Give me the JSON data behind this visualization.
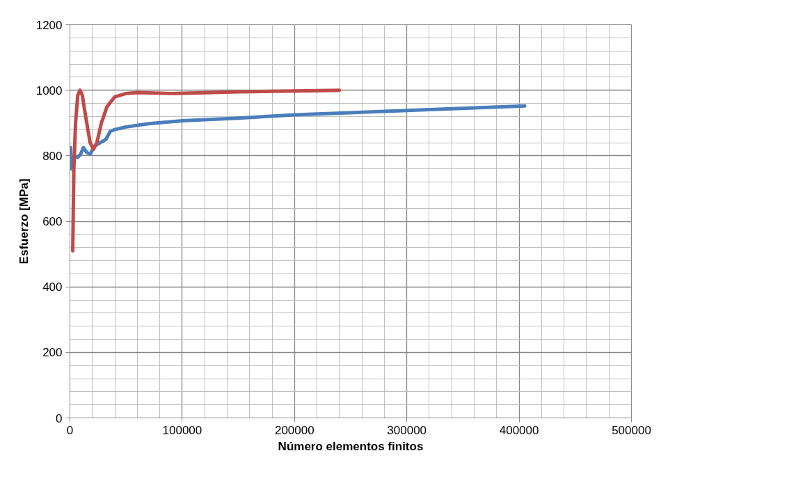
{
  "chart_data": {
    "type": "line",
    "xlabel": "Número elementos finitos",
    "ylabel": "Esfuerzo [MPa]",
    "xlim": [
      0,
      500000
    ],
    "ylim": [
      0,
      1200
    ],
    "xticks": [
      0,
      100000,
      200000,
      300000,
      400000,
      500000
    ],
    "yticks": [
      0,
      200,
      400,
      600,
      800,
      1000,
      1200
    ],
    "grid": true,
    "marker": "none",
    "line_style": "solid",
    "series": [
      {
        "color": "#4a7ebb",
        "x": [
          500,
          1500,
          4000,
          7000,
          9500,
          12000,
          15000,
          18000,
          22000,
          27000,
          32000,
          36000,
          40000,
          50000,
          70000,
          100000,
          150000,
          200000,
          300000,
          405000
        ],
        "values": [
          825,
          760,
          800,
          795,
          805,
          825,
          810,
          805,
          830,
          840,
          850,
          875,
          880,
          888,
          898,
          907,
          915,
          925,
          938,
          952
        ]
      },
      {
        "color": "#be4b48",
        "x": [
          2500,
          3500,
          5000,
          7000,
          9000,
          11000,
          14000,
          18000,
          21000,
          24000,
          28000,
          33000,
          40000,
          50000,
          60000,
          90000,
          150000,
          240000
        ],
        "values": [
          510,
          760,
          900,
          985,
          1000,
          985,
          920,
          840,
          820,
          840,
          900,
          950,
          980,
          990,
          993,
          990,
          995,
          1000
        ]
      }
    ]
  }
}
